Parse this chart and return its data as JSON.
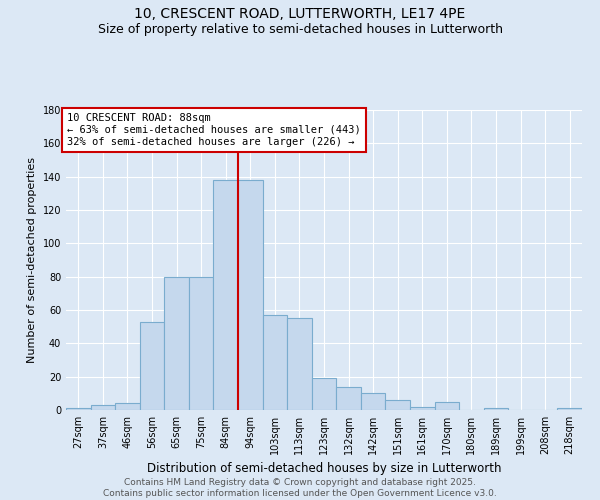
{
  "title": "10, CRESCENT ROAD, LUTTERWORTH, LE17 4PE",
  "subtitle": "Size of property relative to semi-detached houses in Lutterworth",
  "xlabel": "Distribution of semi-detached houses by size in Lutterworth",
  "ylabel": "Number of semi-detached properties",
  "categories": [
    "27sqm",
    "37sqm",
    "46sqm",
    "56sqm",
    "65sqm",
    "75sqm",
    "84sqm",
    "94sqm",
    "103sqm",
    "113sqm",
    "123sqm",
    "132sqm",
    "142sqm",
    "151sqm",
    "161sqm",
    "170sqm",
    "180sqm",
    "189sqm",
    "199sqm",
    "208sqm",
    "218sqm"
  ],
  "values": [
    1,
    3,
    4,
    53,
    80,
    80,
    138,
    138,
    57,
    55,
    19,
    14,
    10,
    6,
    2,
    5,
    0,
    1,
    0,
    0,
    1
  ],
  "bar_color": "#c5d8ed",
  "bar_edge_color": "#7aacce",
  "vline_x": 6.5,
  "annotation_text": "10 CRESCENT ROAD: 88sqm\n← 63% of semi-detached houses are smaller (443)\n32% of semi-detached houses are larger (226) →",
  "annotation_box_color": "#ffffff",
  "annotation_box_edge": "#cc0000",
  "vline_color": "#cc0000",
  "footer": "Contains HM Land Registry data © Crown copyright and database right 2025.\nContains public sector information licensed under the Open Government Licence v3.0.",
  "ylim": [
    0,
    180
  ],
  "yticks": [
    0,
    20,
    40,
    60,
    80,
    100,
    120,
    140,
    160,
    180
  ],
  "background_color": "#dce8f5",
  "grid_color": "#ffffff",
  "title_fontsize": 10,
  "subtitle_fontsize": 9,
  "xlabel_fontsize": 8.5,
  "ylabel_fontsize": 8,
  "tick_fontsize": 7,
  "footer_fontsize": 6.5,
  "ann_fontsize": 7.5
}
